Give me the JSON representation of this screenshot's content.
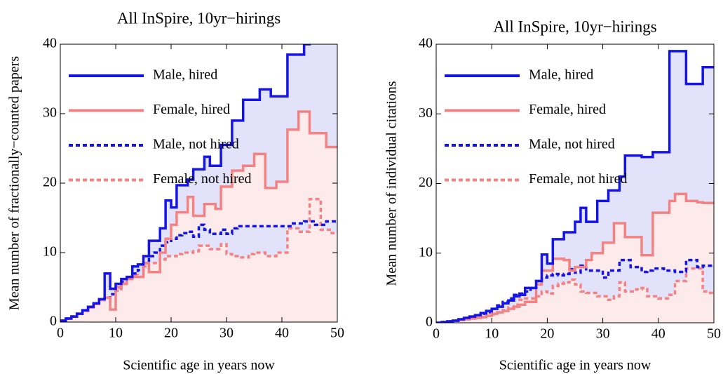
{
  "chart_data": [
    {
      "type": "step",
      "title": "All InSpire, 10yr−hirings",
      "xlabel": "Scientific age in years now",
      "ylabel": "Mean number of fractionally−counted papers",
      "x": [
        0,
        1,
        2,
        3,
        4,
        5,
        6,
        7,
        8,
        9,
        10,
        11,
        12,
        13,
        14,
        15,
        16,
        17,
        18,
        19,
        20,
        21,
        22,
        23,
        24,
        25,
        26,
        27,
        28,
        29,
        30,
        31,
        32,
        33,
        34,
        35,
        36,
        37,
        38,
        39,
        40,
        41,
        42,
        43,
        44,
        45,
        46,
        47,
        48,
        49
      ],
      "xlim": [
        0,
        50
      ],
      "ylim": [
        0,
        40
      ],
      "xticks": [
        0,
        10,
        20,
        30,
        40,
        50
      ],
      "yticks": [
        0,
        10,
        20,
        30,
        40
      ],
      "legend": "upper left",
      "series": [
        {
          "name": "Male, hired",
          "color": "#1414e6",
          "style": "solid",
          "fill": "#e2e2fa",
          "values": [
            0.2,
            0.5,
            0.8,
            1.2,
            1.7,
            2.2,
            2.7,
            3.3,
            7,
            4.8,
            5.5,
            6.2,
            6.5,
            8,
            8.3,
            9.5,
            11.7,
            11.7,
            13.5,
            17.5,
            16.5,
            19.7,
            19.7,
            20.5,
            22,
            22,
            23.8,
            22.5,
            22.5,
            25.5,
            25.5,
            29,
            29,
            32,
            32,
            32,
            33.5,
            33.5,
            32.5,
            32.5,
            32.5,
            38.5,
            38.5,
            38.5,
            40,
            41,
            41,
            41,
            41,
            41
          ]
        },
        {
          "name": "Female, hired",
          "color": "#f58282",
          "style": "solid",
          "fill": "#fdeaea",
          "values": [
            0.2,
            0.5,
            0.8,
            1.2,
            1.6,
            2.1,
            2.6,
            3.2,
            3.5,
            1.8,
            5,
            5.5,
            6.2,
            6.5,
            6.5,
            8.5,
            7.2,
            7.2,
            10,
            12,
            14,
            15.8,
            15.8,
            18,
            15.3,
            15.3,
            17,
            17,
            16.3,
            19.5,
            19.5,
            21.8,
            21.8,
            22.5,
            22.5,
            24.2,
            24.2,
            19.3,
            19.3,
            20.2,
            20.2,
            27.7,
            27.7,
            30.3,
            30.3,
            27.2,
            27.2,
            27.2,
            25.2,
            25.2
          ]
        },
        {
          "name": "Male, not hired",
          "color": "#1414e6",
          "style": "dashed",
          "fill": "#e2e2fa",
          "values": [
            0.2,
            0.5,
            0.8,
            1.2,
            1.6,
            2.1,
            2.6,
            3.2,
            3.5,
            4,
            5,
            5.8,
            6.3,
            7,
            7.5,
            8.5,
            9.5,
            10,
            11,
            11.5,
            12,
            12.5,
            12.8,
            13,
            12.3,
            14,
            13.3,
            12.7,
            12.7,
            13.3,
            12.7,
            13.5,
            13.8,
            13.8,
            13.8,
            13.8,
            13.8,
            13.8,
            13.8,
            13.8,
            13.8,
            13.8,
            14.2,
            14.2,
            14.5,
            14.5,
            14,
            14,
            14.5,
            14.5
          ]
        },
        {
          "name": "Female, not hired",
          "color": "#f58282",
          "style": "dashed",
          "fill": "#fdeaea",
          "values": [
            0.2,
            0.5,
            0.8,
            1.2,
            1.6,
            2.1,
            2.6,
            3.2,
            3.5,
            4,
            4.5,
            5.5,
            6.5,
            6.8,
            6.5,
            8,
            8.5,
            8.5,
            9,
            9.5,
            9.5,
            9.8,
            10,
            10,
            10.2,
            11,
            11,
            10.5,
            10.5,
            11.2,
            9.8,
            9.5,
            9.3,
            9.3,
            9.8,
            10,
            10,
            9.5,
            9.5,
            10,
            10,
            13.5,
            13.5,
            13,
            13,
            17.7,
            17.7,
            13.3,
            13.3,
            12.8
          ]
        }
      ]
    },
    {
      "type": "step",
      "title": "All InSpire, 10yr−hirings",
      "xlabel": "Scientific age in years now",
      "ylabel": "Mean number of individual citations",
      "x": [
        0,
        1,
        2,
        3,
        4,
        5,
        6,
        7,
        8,
        9,
        10,
        11,
        12,
        13,
        14,
        15,
        16,
        17,
        18,
        19,
        20,
        21,
        22,
        23,
        24,
        25,
        26,
        27,
        28,
        29,
        30,
        31,
        32,
        33,
        34,
        35,
        36,
        37,
        38,
        39,
        40,
        41,
        42,
        43,
        44,
        45,
        46,
        47,
        48,
        49
      ],
      "xlim": [
        0,
        50
      ],
      "ylim": [
        0,
        40
      ],
      "xticks": [
        0,
        10,
        20,
        30,
        40,
        50
      ],
      "yticks": [
        0,
        10,
        20,
        30,
        40
      ],
      "legend": "upper left",
      "series": [
        {
          "name": "Male, hired",
          "color": "#1414e6",
          "style": "solid",
          "fill": "#e2e2fa",
          "values": [
            0,
            0.1,
            0.2,
            0.3,
            0.5,
            0.7,
            0.9,
            1.1,
            1.4,
            1.7,
            2,
            2.3,
            2.8,
            3.2,
            3.8,
            4,
            5,
            5,
            6,
            9.8,
            8.5,
            12,
            12,
            13,
            13,
            14.5,
            16.5,
            14.5,
            14.5,
            17.5,
            17.5,
            19,
            19,
            21,
            24,
            24,
            24,
            23.8,
            23.8,
            24.5,
            24.5,
            24.5,
            39,
            39,
            39,
            34.3,
            34.3,
            34.3,
            36.7,
            36.7
          ]
        },
        {
          "name": "Female, hired",
          "color": "#f58282",
          "style": "solid",
          "fill": "#fdeaea",
          "values": [
            0,
            0.1,
            0.2,
            0.3,
            0.4,
            0.5,
            0.6,
            0.7,
            0.8,
            1,
            1.3,
            1.5,
            1.7,
            2,
            2.3,
            2.6,
            3,
            3,
            5.5,
            7.5,
            7.5,
            9.2,
            9.2,
            9,
            7.5,
            8,
            8,
            9,
            10,
            10,
            11.5,
            11.5,
            14.3,
            14.3,
            12.3,
            12.3,
            12.3,
            9.7,
            9.7,
            15.8,
            15.8,
            15.8,
            17.5,
            18.5,
            18.5,
            17.5,
            17.5,
            17.3,
            17.2,
            17.2
          ]
        },
        {
          "name": "Male, not hired",
          "color": "#1414e6",
          "style": "dashed",
          "fill": "#e2e2fa",
          "values": [
            0,
            0.1,
            0.2,
            0.3,
            0.5,
            0.7,
            0.9,
            1.1,
            1.3,
            1.5,
            2,
            2.5,
            3,
            3.5,
            4,
            4.2,
            4.5,
            5,
            6,
            6.5,
            6.8,
            7,
            6.8,
            7,
            7.7,
            7.2,
            8.2,
            7.5,
            7.5,
            7.5,
            6.5,
            7.5,
            7.5,
            9,
            9,
            8,
            8,
            7.3,
            7.5,
            7.8,
            7.8,
            7.5,
            7.5,
            7.3,
            7.3,
            9,
            9,
            8,
            8.2,
            8.2
          ]
        },
        {
          "name": "Female, not hired",
          "color": "#f58282",
          "style": "dashed",
          "fill": "#fdeaea",
          "values": [
            0,
            0.1,
            0.2,
            0.3,
            0.4,
            0.5,
            0.6,
            0.7,
            0.8,
            1,
            1.2,
            1.5,
            1.8,
            2.2,
            2.6,
            3.3,
            3.5,
            3.5,
            3.8,
            4.5,
            4.2,
            5.3,
            5.6,
            5.8,
            6.2,
            5.5,
            4.5,
            4.3,
            4.3,
            3.8,
            3.8,
            3.3,
            3.8,
            5.8,
            4.5,
            4.5,
            4.8,
            5,
            3.8,
            3.8,
            3.5,
            3.5,
            4,
            6,
            6,
            7.8,
            7.8,
            7.8,
            4.5,
            4.3
          ]
        }
      ]
    }
  ]
}
